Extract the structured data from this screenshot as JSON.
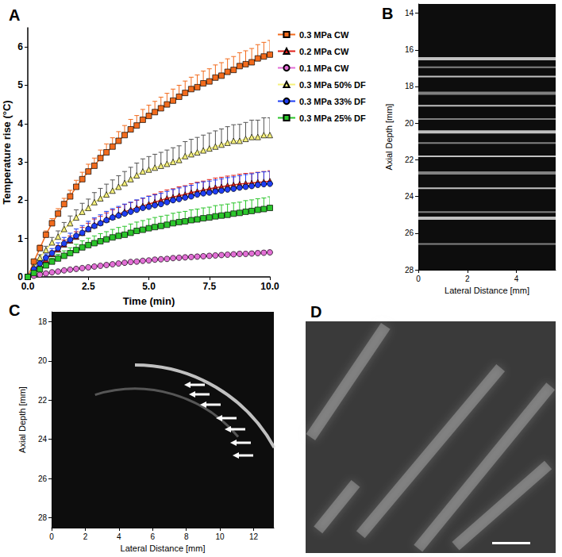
{
  "chart_data": [
    {
      "title": "A",
      "type": "line",
      "xlabel": "Time (min)",
      "ylabel": "Temperature rise (°C)",
      "xlim": [
        0,
        10
      ],
      "ylim": [
        0,
        6.5
      ],
      "xticks": [
        {
          "value": 0,
          "label": "0.0"
        },
        2.5,
        {
          "value": 5,
          "label": "5.0"
        },
        7.5,
        {
          "value": 10,
          "label": "10.0"
        }
      ],
      "yticks": [
        0,
        1,
        2,
        3,
        4,
        5,
        6
      ],
      "grid": false,
      "legend": "right",
      "x": [
        0,
        0.25,
        0.5,
        0.75,
        1,
        1.25,
        1.5,
        1.75,
        2,
        2.25,
        2.5,
        2.75,
        3,
        3.25,
        3.5,
        3.75,
        4,
        4.25,
        4.5,
        4.75,
        5,
        5.25,
        5.5,
        5.75,
        6,
        6.25,
        6.5,
        6.75,
        7,
        7.25,
        7.5,
        7.75,
        8,
        8.25,
        8.5,
        8.75,
        9,
        9.25,
        9.5,
        9.75,
        10
      ],
      "series": [
        {
          "name": "0.3 MPa CW",
          "color": "#f26b1d",
          "marker": "square",
          "values": [
            0,
            0.4,
            0.75,
            1.1,
            1.4,
            1.65,
            1.9,
            2.1,
            2.35,
            2.55,
            2.75,
            2.9,
            3.1,
            3.25,
            3.4,
            3.55,
            3.7,
            3.85,
            3.95,
            4.1,
            4.2,
            4.3,
            4.4,
            4.5,
            4.6,
            4.7,
            4.8,
            4.9,
            4.95,
            5.05,
            5.1,
            5.2,
            5.25,
            5.35,
            5.4,
            5.5,
            5.55,
            5.6,
            5.7,
            5.75,
            5.8
          ],
          "errors": [
            0,
            0.05,
            0.08,
            0.1,
            0.12,
            0.13,
            0.15,
            0.16,
            0.17,
            0.18,
            0.19,
            0.2,
            0.21,
            0.22,
            0.23,
            0.24,
            0.25,
            0.26,
            0.26,
            0.27,
            0.28,
            0.28,
            0.29,
            0.29,
            0.3,
            0.3,
            0.31,
            0.31,
            0.32,
            0.32,
            0.33,
            0.33,
            0.34,
            0.34,
            0.35,
            0.35,
            0.35,
            0.36,
            0.36,
            0.37,
            0.37
          ]
        },
        {
          "name": "0.2 MPa CW",
          "color": "#e0201b",
          "marker": "triangle",
          "values": [
            0,
            0.15,
            0.3,
            0.45,
            0.6,
            0.72,
            0.85,
            0.95,
            1.05,
            1.15,
            1.25,
            1.35,
            1.42,
            1.5,
            1.57,
            1.63,
            1.7,
            1.75,
            1.8,
            1.85,
            1.9,
            1.95,
            2.0,
            2.05,
            2.08,
            2.12,
            2.15,
            2.2,
            2.23,
            2.26,
            2.3,
            2.33,
            2.35,
            2.38,
            2.4,
            2.42,
            2.44,
            2.45,
            2.47,
            2.48,
            2.5
          ],
          "errors": [
            0,
            0.03,
            0.05,
            0.07,
            0.08,
            0.1,
            0.11,
            0.12,
            0.13,
            0.14,
            0.15,
            0.16,
            0.16,
            0.17,
            0.18,
            0.18,
            0.19,
            0.19,
            0.2,
            0.2,
            0.21,
            0.21,
            0.22,
            0.22,
            0.22,
            0.23,
            0.23,
            0.23,
            0.24,
            0.24,
            0.24,
            0.25,
            0.25,
            0.25,
            0.25,
            0.26,
            0.26,
            0.26,
            0.26,
            0.27,
            0.27
          ]
        },
        {
          "name": "0.1 MPa CW",
          "color": "#e36fd6",
          "marker": "circle",
          "values": [
            0,
            0.03,
            0.06,
            0.09,
            0.12,
            0.14,
            0.17,
            0.19,
            0.21,
            0.23,
            0.25,
            0.27,
            0.29,
            0.31,
            0.33,
            0.35,
            0.37,
            0.39,
            0.4,
            0.42,
            0.43,
            0.45,
            0.46,
            0.47,
            0.49,
            0.5,
            0.51,
            0.52,
            0.53,
            0.54,
            0.55,
            0.56,
            0.57,
            0.58,
            0.59,
            0.6,
            0.6,
            0.61,
            0.62,
            0.63,
            0.64
          ],
          "errors": [
            0,
            0.01,
            0.01,
            0.02,
            0.02,
            0.02,
            0.03,
            0.03,
            0.03,
            0.03,
            0.03,
            0.03,
            0.04,
            0.04,
            0.04,
            0.04,
            0.04,
            0.04,
            0.04,
            0.04,
            0.04,
            0.05,
            0.05,
            0.05,
            0.05,
            0.05,
            0.05,
            0.05,
            0.05,
            0.05,
            0.05,
            0.05,
            0.05,
            0.05,
            0.05,
            0.06,
            0.06,
            0.06,
            0.06,
            0.06,
            0.06
          ]
        },
        {
          "name": "0.3 MPa 50% DF",
          "color": "#f5f07a",
          "marker": "triangle",
          "values": [
            0,
            0.25,
            0.5,
            0.7,
            0.9,
            1.05,
            1.25,
            1.4,
            1.55,
            1.7,
            1.8,
            1.95,
            2.05,
            2.15,
            2.25,
            2.35,
            2.45,
            2.55,
            2.65,
            2.75,
            2.8,
            2.85,
            2.9,
            2.95,
            3.0,
            3.05,
            3.15,
            3.2,
            3.25,
            3.3,
            3.35,
            3.4,
            3.45,
            3.5,
            3.55,
            3.55,
            3.6,
            3.65,
            3.65,
            3.7,
            3.7
          ],
          "errors": [
            0,
            0.05,
            0.08,
            0.1,
            0.13,
            0.15,
            0.17,
            0.19,
            0.2,
            0.22,
            0.23,
            0.25,
            0.26,
            0.27,
            0.28,
            0.29,
            0.3,
            0.31,
            0.32,
            0.33,
            0.34,
            0.35,
            0.35,
            0.36,
            0.37,
            0.37,
            0.38,
            0.39,
            0.39,
            0.4,
            0.4,
            0.41,
            0.41,
            0.42,
            0.42,
            0.43,
            0.43,
            0.44,
            0.44,
            0.45,
            0.45
          ]
        },
        {
          "name": "0.3 MPa 33% DF",
          "color": "#1f3ff5",
          "marker": "circle",
          "values": [
            0,
            0.2,
            0.35,
            0.5,
            0.62,
            0.75,
            0.87,
            0.97,
            1.07,
            1.15,
            1.25,
            1.33,
            1.4,
            1.48,
            1.55,
            1.6,
            1.65,
            1.7,
            1.75,
            1.8,
            1.83,
            1.87,
            1.9,
            1.95,
            2.0,
            2.03,
            2.07,
            2.1,
            2.15,
            2.18,
            2.2,
            2.23,
            2.25,
            2.28,
            2.3,
            2.33,
            2.35,
            2.37,
            2.4,
            2.42,
            2.43
          ],
          "errors": [
            0,
            0.04,
            0.07,
            0.1,
            0.12,
            0.14,
            0.16,
            0.17,
            0.18,
            0.19,
            0.2,
            0.21,
            0.22,
            0.23,
            0.23,
            0.24,
            0.25,
            0.25,
            0.26,
            0.26,
            0.27,
            0.27,
            0.28,
            0.28,
            0.28,
            0.29,
            0.29,
            0.29,
            0.3,
            0.3,
            0.3,
            0.3,
            0.31,
            0.31,
            0.31,
            0.31,
            0.32,
            0.32,
            0.32,
            0.32,
            0.32
          ]
        },
        {
          "name": "0.3 MPa 25% DF",
          "color": "#2bc52b",
          "marker": "square",
          "values": [
            0,
            0.1,
            0.2,
            0.3,
            0.4,
            0.48,
            0.55,
            0.62,
            0.7,
            0.77,
            0.83,
            0.88,
            0.93,
            0.98,
            1.03,
            1.07,
            1.1,
            1.15,
            1.2,
            1.23,
            1.27,
            1.3,
            1.33,
            1.36,
            1.4,
            1.43,
            1.45,
            1.48,
            1.5,
            1.53,
            1.55,
            1.58,
            1.6,
            1.62,
            1.65,
            1.67,
            1.7,
            1.72,
            1.75,
            1.77,
            1.8
          ],
          "errors": [
            0,
            0.03,
            0.05,
            0.07,
            0.09,
            0.11,
            0.13,
            0.14,
            0.15,
            0.17,
            0.18,
            0.19,
            0.2,
            0.2,
            0.21,
            0.22,
            0.22,
            0.23,
            0.23,
            0.24,
            0.24,
            0.25,
            0.25,
            0.25,
            0.26,
            0.26,
            0.26,
            0.27,
            0.27,
            0.27,
            0.27,
            0.28,
            0.28,
            0.28,
            0.28,
            0.28,
            0.29,
            0.29,
            0.29,
            0.29,
            0.29
          ]
        }
      ]
    },
    {
      "title": "B",
      "type": "image",
      "xlabel": "Lateral Distance [mm]",
      "ylabel": "Axial Depth [mm]",
      "xlim": [
        0,
        5.6
      ],
      "ylim": [
        28,
        13.5
      ],
      "xticks": [
        0,
        2,
        4
      ],
      "yticks": [
        14,
        16,
        18,
        20,
        22,
        24,
        26,
        28
      ],
      "grid": false
    },
    {
      "title": "C",
      "type": "image",
      "xlabel": "Lateral Distance [mm]",
      "ylabel": "Axial Depth [mm]",
      "xlim": [
        0,
        13.2
      ],
      "ylim": [
        28.5,
        17.5
      ],
      "xticks": [
        0,
        2,
        4,
        6,
        8,
        10,
        12
      ],
      "yticks": [
        18,
        20,
        22,
        24,
        26,
        28
      ],
      "grid": false
    },
    {
      "title": "D",
      "type": "image",
      "tick_labels": false
    }
  ]
}
